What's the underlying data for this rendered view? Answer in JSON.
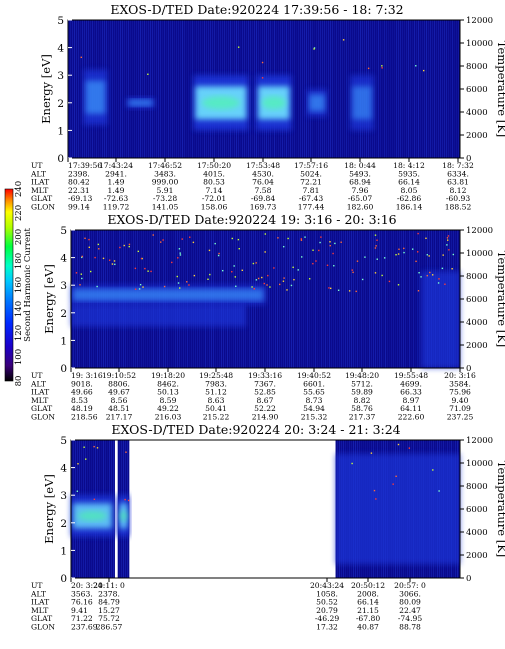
{
  "colors": {
    "background": "#0a0a8c",
    "mid": "#2a44e8",
    "band": "#1a34d8",
    "bright": "#6fe3ff",
    "hot": "#48ff9a",
    "colorbar": [
      "#000000",
      "#3a007a",
      "#1b00c8",
      "#0028ff",
      "#0078ff",
      "#00c8ff",
      "#00ffc8",
      "#00ff40",
      "#b0ff00",
      "#ffff00",
      "#ff8c00",
      "#ff0000"
    ]
  },
  "colorbar": {
    "label": "Second Harmonic Current",
    "ticks": [
      "80",
      "100",
      "120",
      "140",
      "160",
      "180",
      "200",
      "220",
      "240"
    ]
  },
  "chart_data": [
    {
      "type": "heatmap",
      "title": "EXOS-D/TED   Date:920224  17:39:56 - 18: 7:32",
      "ylabel": "Energy [eV]",
      "y2label": "Temperature [K]",
      "ylim": [
        0,
        5
      ],
      "y2lim": [
        0,
        12000
      ],
      "yticks": [
        "0",
        "1",
        "2",
        "3",
        "4",
        "5"
      ],
      "y2ticks": [
        "0",
        "2000",
        "4000",
        "6000",
        "8000",
        "10000",
        "12000"
      ],
      "ephemeris_labels": [
        "UT",
        "ALT",
        "ILAT",
        "MLT",
        "GLAT",
        "GLON"
      ],
      "ephemeris": [
        [
          "17:39:56",
          "2398.",
          "80.42",
          "22.31",
          "-69.13",
          "99.14"
        ],
        [
          "17:43:24",
          "2941.",
          "1.49",
          "1.49",
          "-72.63",
          "119.72"
        ],
        [
          "17:46:52",
          "3483.",
          "999.00",
          "5.91",
          "-73.28",
          "141.05"
        ],
        [
          "17:50:20",
          "4015.",
          "80.53",
          "7.14",
          "-72.01",
          "158.06"
        ],
        [
          "17:53:48",
          "4530.",
          "76.04",
          "7.58",
          "-69.84",
          "169.73"
        ],
        [
          "17:57:16",
          "5024.",
          "72.21",
          "7.81",
          "-67.43",
          "177.44"
        ],
        [
          "18: 0:44",
          "5493.",
          "68.94",
          "7.96",
          "-65.07",
          "182.60"
        ],
        [
          "18: 4:12",
          "5935.",
          "66.14",
          "8.05",
          "-62.86",
          "186.14"
        ],
        [
          "18: 7:32",
          "6334.",
          "63.81",
          "8.12",
          "-60.93",
          "188.52"
        ]
      ],
      "intensity": [
        {
          "start": 0.04,
          "end": 0.1,
          "emin": 1.2,
          "emax": 3.2,
          "level": 0.55
        },
        {
          "start": 0.15,
          "end": 0.22,
          "emin": 1.8,
          "emax": 2.2,
          "level": 0.45
        },
        {
          "start": 0.32,
          "end": 0.46,
          "emin": 1.0,
          "emax": 3.0,
          "level": 1.0
        },
        {
          "start": 0.48,
          "end": 0.57,
          "emin": 1.0,
          "emax": 3.0,
          "level": 1.0
        },
        {
          "start": 0.61,
          "end": 0.66,
          "emin": 1.5,
          "emax": 2.5,
          "level": 0.5
        },
        {
          "start": 0.72,
          "end": 0.78,
          "emin": 1.0,
          "emax": 3.0,
          "level": 0.4
        }
      ]
    },
    {
      "type": "heatmap",
      "title": "EXOS-D/TED   Date:920224  19: 3:16 - 20: 3:16",
      "ylabel": "Energy [eV]",
      "y2label": "Temperature [K]",
      "ylim": [
        0,
        5
      ],
      "y2lim": [
        0,
        12000
      ],
      "yticks": [
        "0",
        "1",
        "2",
        "3",
        "4",
        "5"
      ],
      "y2ticks": [
        "0",
        "2000",
        "4000",
        "6000",
        "8000",
        "10000",
        "12000"
      ],
      "ephemeris_labels": [
        "UT",
        "ALT",
        "ILAT",
        "MLT",
        "GLAT",
        "GLON"
      ],
      "ephemeris": [
        [
          "19: 3:16",
          "9018.",
          "49.66",
          "8.53",
          "48.19",
          "218.56"
        ],
        [
          "19:10:52",
          "8806.",
          "49.67",
          "8.56",
          "48.51",
          "217.17"
        ],
        [
          "19:18:20",
          "8462.",
          "50.13",
          "8.59",
          "49.22",
          "216.03"
        ],
        [
          "19:25:48",
          "7983.",
          "51.12",
          "8.63",
          "50.41",
          "215.22"
        ],
        [
          "19:33:16",
          "7367.",
          "52.85",
          "8.67",
          "52.22",
          "214.90"
        ],
        [
          "19:40:52",
          "6601.",
          "55.65",
          "8.73",
          "54.94",
          "215.32"
        ],
        [
          "19:48:20",
          "5712.",
          "59.89",
          "8.82",
          "58.76",
          "217.37"
        ],
        [
          "19:55:48",
          "4699.",
          "66.33",
          "8.97",
          "64.11",
          "222.60"
        ],
        [
          "20: 3:16",
          "3584.",
          "75.96",
          "9.40",
          "71.09",
          "237.25"
        ]
      ],
      "intensity": [
        {
          "start": 0.0,
          "end": 0.5,
          "emin": 2.3,
          "emax": 3.0,
          "level": 0.45
        },
        {
          "start": 0.0,
          "end": 0.45,
          "emin": 1.5,
          "emax": 2.3,
          "level": 0.3
        },
        {
          "start": 0.9,
          "end": 1.0,
          "emin": 0.0,
          "emax": 3.5,
          "level": 0.3
        }
      ]
    },
    {
      "type": "heatmap",
      "title": "EXOS-D/TED   Date:920224  20: 3:24 - 21: 3:24",
      "ylabel": "Energy [eV]",
      "y2label": "Temperature [K]",
      "ylim": [
        0,
        5
      ],
      "y2lim": [
        0,
        12000
      ],
      "yticks": [
        "0",
        "1",
        "2",
        "3",
        "4",
        "5"
      ],
      "y2ticks": [
        "0",
        "2000",
        "4000",
        "6000",
        "8000",
        "10000",
        "12000"
      ],
      "ephemeris_labels": [
        "UT",
        "ALT",
        "ILAT",
        "MLT",
        "GLAT",
        "GLON"
      ],
      "ephemeris": [
        [
          "20: 3:24",
          "3563.",
          "76.16",
          "9.41",
          "71.22",
          "237.69"
        ],
        [
          "20:11: 0",
          "2378.",
          "84.79",
          "15.27",
          "75.72",
          "286.57"
        ],
        [
          "20:43:24",
          "1058.",
          "50.52",
          "20.79",
          "-46.29",
          "17.32"
        ],
        [
          "20:50:12",
          "2008.",
          "66.14",
          "21.15",
          "-67.80",
          "40.87"
        ],
        [
          "20:57: 0",
          "3066.",
          "80.09",
          "22.47",
          "-74.95",
          "88.78"
        ]
      ],
      "intensity": [
        {
          "start": 0.0,
          "end": 0.11,
          "emin": 1.5,
          "emax": 3.0,
          "level": 0.8
        },
        {
          "start": 0.12,
          "end": 0.15,
          "emin": 1.5,
          "emax": 3.0,
          "level": 0.9
        },
        {
          "start": 0.68,
          "end": 1.0,
          "emin": 0.5,
          "emax": 4.5,
          "level": 0.35
        }
      ],
      "data_gaps": [
        [
          0.113,
          0.12
        ],
        [
          0.15,
          0.68
        ]
      ]
    }
  ]
}
